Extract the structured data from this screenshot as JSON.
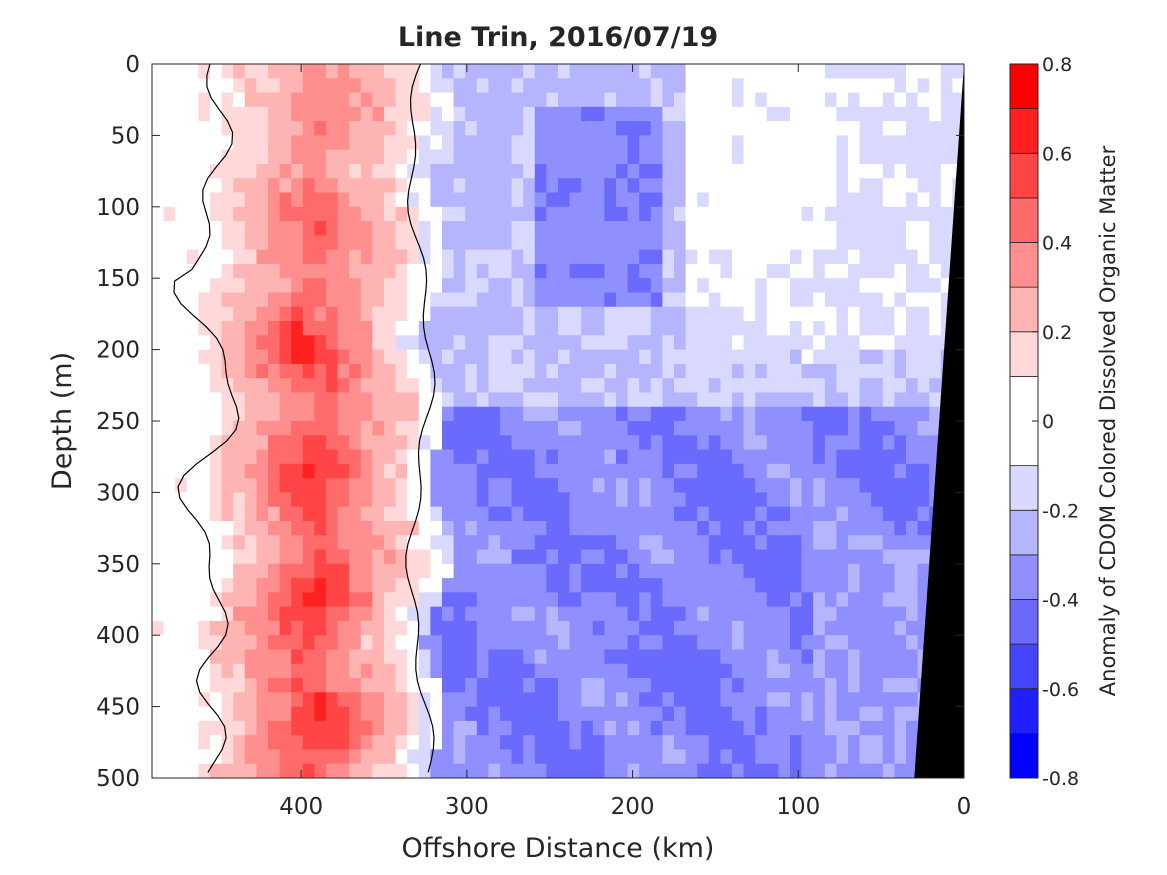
{
  "chart_data": {
    "type": "heatmap",
    "title": "Line Trin, 2016/07/19",
    "xlabel": "Offshore Distance (km)",
    "ylabel": "Depth (m)",
    "xlim": [
      490,
      0
    ],
    "ylim": [
      0,
      500
    ],
    "x_reversed": true,
    "y_reversed": true,
    "x_ticks": [
      "400",
      "300",
      "200",
      "100",
      "0"
    ],
    "y_ticks": [
      "0",
      "50",
      "100",
      "150",
      "200",
      "250",
      "300",
      "350",
      "400",
      "450",
      "500"
    ],
    "colorbar": {
      "label": "Anomaly of CDOM Colored Dissolved Organic Matter",
      "range": [
        -0.8,
        0.8
      ],
      "levels": [
        -0.8,
        -0.7,
        -0.6,
        -0.5,
        -0.4,
        -0.3,
        -0.2,
        -0.1,
        0.1,
        0.2,
        0.3,
        0.4,
        0.5,
        0.6,
        0.7,
        0.8
      ],
      "tick_labels": [
        "-0.8",
        "-0.6",
        "-0.4",
        "-0.2",
        "0",
        "0.2",
        "0.4",
        "0.6",
        "0.8"
      ],
      "tick_values": [
        -0.8,
        -0.6,
        -0.4,
        -0.2,
        0,
        0.2,
        0.4,
        0.6,
        0.8
      ],
      "colors_low_to_high": [
        "#0000ff",
        "#2020ff",
        "#4545ff",
        "#6a6aff",
        "#8f8fff",
        "#b4b4ff",
        "#d9d9ff",
        "#ffffff",
        "#ffd9d9",
        "#ffb4b4",
        "#ff8f8f",
        "#ff6a6a",
        "#ff4545",
        "#ff2020",
        "#ff0000"
      ]
    },
    "zero_contour": true,
    "bathymetry_mask": {
      "color": "#000000",
      "depth_at_edge": 500,
      "distance_at_bottom_km": 30
    },
    "field_regions": [
      {
        "name": "offshore-margin",
        "x_range": [
          490,
          450
        ],
        "depth_range": [
          0,
          500
        ],
        "anomaly": 0.0
      },
      {
        "name": "positive-core",
        "x_range": [
          450,
          330
        ],
        "depth_range": [
          0,
          500
        ],
        "anomaly_surface": 0.2,
        "anomaly_deep": 0.55
      },
      {
        "name": "negative-upper",
        "x_range": [
          320,
          0
        ],
        "depth_range": [
          0,
          250
        ],
        "anomaly": -0.25
      },
      {
        "name": "negative-core",
        "x_range": [
          250,
          180
        ],
        "depth_range": [
          40,
          160
        ],
        "anomaly": -0.4
      },
      {
        "name": "negative-lower",
        "x_range": [
          320,
          0
        ],
        "depth_range": [
          250,
          500
        ],
        "anomaly": -0.4
      },
      {
        "name": "near-shore-neutral",
        "x_range": [
          160,
          20
        ],
        "depth_range": [
          0,
          230
        ],
        "anomaly": 0.0
      }
    ]
  }
}
